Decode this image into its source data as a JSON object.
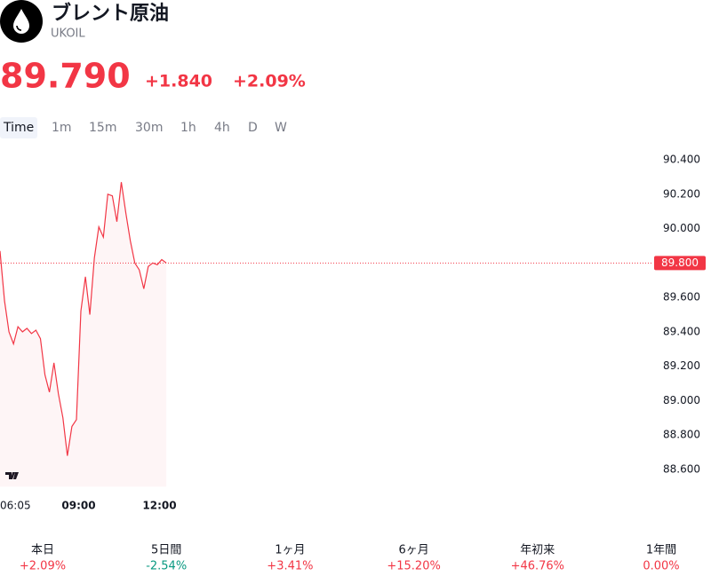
{
  "header": {
    "title": "ブレント原油",
    "symbol": "UKOIL",
    "price": "89.790",
    "change": "+1.840",
    "change_percent": "+2.09%"
  },
  "timeframes": [
    "Time",
    "1m",
    "15m",
    "30m",
    "1h",
    "4h",
    "D",
    "W"
  ],
  "chart_data": {
    "type": "line",
    "color": "#f23645",
    "x": [
      "06:05",
      "06:15",
      "06:25",
      "06:35",
      "06:45",
      "06:55",
      "07:05",
      "07:15",
      "07:25",
      "07:35",
      "07:45",
      "07:55",
      "08:05",
      "08:15",
      "08:25",
      "08:35",
      "08:45",
      "08:55",
      "09:05",
      "09:15",
      "09:25",
      "09:35",
      "09:45",
      "09:55",
      "10:05",
      "10:15",
      "10:25",
      "10:35",
      "10:45",
      "10:55",
      "11:05",
      "11:15",
      "11:25",
      "11:35",
      "11:45",
      "11:55",
      "12:05",
      "12:15"
    ],
    "values": [
      89.87,
      89.58,
      89.4,
      89.33,
      89.43,
      89.4,
      89.42,
      89.39,
      89.41,
      89.36,
      89.15,
      89.05,
      89.22,
      89.04,
      88.9,
      88.68,
      88.85,
      88.89,
      89.52,
      89.72,
      89.5,
      89.83,
      90.01,
      89.95,
      90.2,
      90.19,
      90.04,
      90.27,
      90.09,
      89.93,
      89.8,
      89.76,
      89.65,
      89.78,
      89.8,
      89.79,
      89.82,
      89.8
    ],
    "ylim": [
      88.5,
      90.5
    ],
    "yticks": [
      {
        "value": 90.4,
        "label": "90.400"
      },
      {
        "value": 90.2,
        "label": "90.200"
      },
      {
        "value": 90.0,
        "label": "90.000"
      },
      {
        "value": 89.6,
        "label": "89.600"
      },
      {
        "value": 89.4,
        "label": "89.400"
      },
      {
        "value": 89.2,
        "label": "89.200"
      },
      {
        "value": 89.0,
        "label": "89.000"
      },
      {
        "value": 88.8,
        "label": "88.800"
      },
      {
        "value": 88.6,
        "label": "88.600"
      }
    ],
    "xticks": [
      "06:05",
      "09:00",
      "12:00"
    ],
    "price_line": {
      "value": 89.8,
      "label": "89.800"
    }
  },
  "performance": [
    {
      "label": "本日",
      "value": "+2.09%",
      "color": "#f23645"
    },
    {
      "label": "5日間",
      "value": "-2.54%",
      "color": "#089981"
    },
    {
      "label": "1ヶ月",
      "value": "+3.41%",
      "color": "#f23645"
    },
    {
      "label": "6ヶ月",
      "value": "+15.20%",
      "color": "#f23645"
    },
    {
      "label": "年初来",
      "value": "+46.76%",
      "color": "#f23645"
    },
    {
      "label": "1年間",
      "value": "0.00%",
      "color": "#f23645"
    }
  ]
}
